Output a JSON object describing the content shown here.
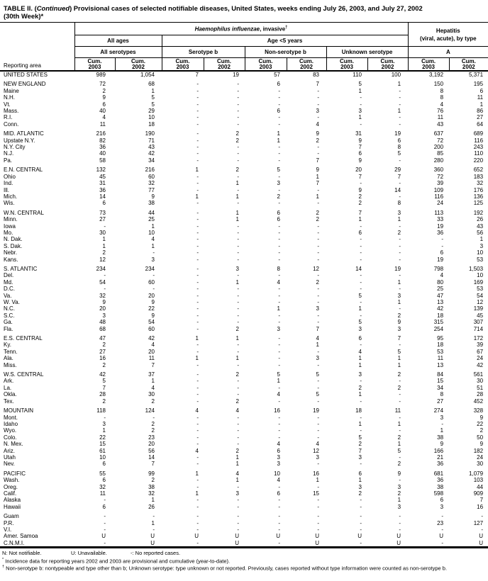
{
  "title": {
    "part1": "TABLE II. (",
    "continued": "Continued",
    "part2": ") Provisional cases of selected notifiable diseases, United States, weeks ending July 26, 2003, and July 27, 2002",
    "line2": "(30th Week)*"
  },
  "header": {
    "reporting_area": "Reporting area",
    "disease_italic": "Haemophilus influenzae",
    "disease_rest": ", invasive",
    "disease_dagger": "†",
    "hepatitis_line1": "Hepatitis",
    "hepatitis_line2": "(viral, acute), by type",
    "all_ages": "All ages",
    "age_under5": "Age <5 years",
    "all_serotypes": "All serotypes",
    "serotype_b": "Serotype b",
    "non_serotype_b": "Non-serotype b",
    "unknown_serotype": "Unknown serotype",
    "type_a": "A",
    "cum": "Cum.",
    "year_2003": "2003",
    "year_2002": "2002"
  },
  "table": {
    "rows": [
      {
        "label": "UNITED STATES",
        "gap": false,
        "values": [
          "989",
          "1,054",
          "7",
          "19",
          "57",
          "83",
          "110",
          "100",
          "3,192",
          "5,371"
        ]
      },
      {
        "label": "NEW ENGLAND",
        "gap": true,
        "values": [
          "72",
          "68",
          "-",
          "-",
          "6",
          "7",
          "5",
          "1",
          "150",
          "195"
        ]
      },
      {
        "label": "Maine",
        "gap": false,
        "values": [
          "2",
          "1",
          "-",
          "-",
          "-",
          "-",
          "1",
          "-",
          "8",
          "6"
        ]
      },
      {
        "label": "N.H.",
        "gap": false,
        "values": [
          "9",
          "5",
          "-",
          "-",
          "-",
          "-",
          "-",
          "-",
          "8",
          "11"
        ]
      },
      {
        "label": "Vt.",
        "gap": false,
        "values": [
          "6",
          "5",
          "-",
          "-",
          "-",
          "-",
          "-",
          "-",
          "4",
          "1"
        ]
      },
      {
        "label": "Mass.",
        "gap": false,
        "values": [
          "40",
          "29",
          "-",
          "-",
          "6",
          "3",
          "3",
          "1",
          "76",
          "86"
        ]
      },
      {
        "label": "R.I.",
        "gap": false,
        "values": [
          "4",
          "10",
          "-",
          "-",
          "-",
          "-",
          "1",
          "-",
          "11",
          "27"
        ]
      },
      {
        "label": "Conn.",
        "gap": false,
        "values": [
          "11",
          "18",
          "-",
          "-",
          "-",
          "4",
          "-",
          "-",
          "43",
          "64"
        ]
      },
      {
        "label": "MID. ATLANTIC",
        "gap": true,
        "values": [
          "216",
          "190",
          "-",
          "2",
          "1",
          "9",
          "31",
          "19",
          "637",
          "689"
        ]
      },
      {
        "label": "Upstate N.Y.",
        "gap": false,
        "values": [
          "82",
          "71",
          "-",
          "2",
          "1",
          "2",
          "9",
          "6",
          "72",
          "116"
        ]
      },
      {
        "label": "N.Y. City",
        "gap": false,
        "values": [
          "36",
          "43",
          "-",
          "-",
          "-",
          "-",
          "7",
          "8",
          "200",
          "243"
        ]
      },
      {
        "label": "N.J.",
        "gap": false,
        "values": [
          "40",
          "42",
          "-",
          "-",
          "-",
          "-",
          "6",
          "5",
          "85",
          "110"
        ]
      },
      {
        "label": "Pa.",
        "gap": false,
        "values": [
          "58",
          "34",
          "-",
          "-",
          "-",
          "7",
          "9",
          "-",
          "280",
          "220"
        ]
      },
      {
        "label": "E.N. CENTRAL",
        "gap": true,
        "values": [
          "132",
          "216",
          "1",
          "2",
          "5",
          "9",
          "20",
          "29",
          "360",
          "652"
        ]
      },
      {
        "label": "Ohio",
        "gap": false,
        "values": [
          "45",
          "60",
          "-",
          "-",
          "-",
          "1",
          "7",
          "7",
          "72",
          "183"
        ]
      },
      {
        "label": "Ind.",
        "gap": false,
        "values": [
          "31",
          "32",
          "-",
          "1",
          "3",
          "7",
          "-",
          "-",
          "39",
          "32"
        ]
      },
      {
        "label": "Ill.",
        "gap": false,
        "values": [
          "36",
          "77",
          "-",
          "-",
          "-",
          "-",
          "9",
          "14",
          "109",
          "176"
        ]
      },
      {
        "label": "Mich.",
        "gap": false,
        "values": [
          "14",
          "9",
          "1",
          "1",
          "2",
          "1",
          "2",
          "-",
          "116",
          "136"
        ]
      },
      {
        "label": "Wis.",
        "gap": false,
        "values": [
          "6",
          "38",
          "-",
          "-",
          "-",
          "-",
          "2",
          "8",
          "24",
          "125"
        ]
      },
      {
        "label": "W.N. CENTRAL",
        "gap": true,
        "values": [
          "73",
          "44",
          "-",
          "1",
          "6",
          "2",
          "7",
          "3",
          "113",
          "192"
        ]
      },
      {
        "label": "Minn.",
        "gap": false,
        "values": [
          "27",
          "25",
          "-",
          "1",
          "6",
          "2",
          "1",
          "1",
          "33",
          "26"
        ]
      },
      {
        "label": "Iowa",
        "gap": false,
        "values": [
          "-",
          "1",
          "-",
          "-",
          "-",
          "-",
          "-",
          "-",
          "19",
          "43"
        ]
      },
      {
        "label": "Mo.",
        "gap": false,
        "values": [
          "30",
          "10",
          "-",
          "-",
          "-",
          "-",
          "6",
          "2",
          "36",
          "56"
        ]
      },
      {
        "label": "N. Dak.",
        "gap": false,
        "values": [
          "1",
          "4",
          "-",
          "-",
          "-",
          "-",
          "-",
          "-",
          "-",
          "1"
        ]
      },
      {
        "label": "S. Dak.",
        "gap": false,
        "values": [
          "1",
          "1",
          "-",
          "-",
          "-",
          "-",
          "-",
          "-",
          "-",
          "3"
        ]
      },
      {
        "label": "Nebr.",
        "gap": false,
        "values": [
          "2",
          "-",
          "-",
          "-",
          "-",
          "-",
          "-",
          "-",
          "6",
          "10"
        ]
      },
      {
        "label": "Kans.",
        "gap": false,
        "values": [
          "12",
          "3",
          "-",
          "-",
          "-",
          "-",
          "-",
          "-",
          "19",
          "53"
        ]
      },
      {
        "label": "S. ATLANTIC",
        "gap": true,
        "values": [
          "234",
          "234",
          "-",
          "3",
          "8",
          "12",
          "14",
          "19",
          "798",
          "1,503"
        ]
      },
      {
        "label": "Del.",
        "gap": false,
        "values": [
          "-",
          "-",
          "-",
          "-",
          "-",
          "-",
          "-",
          "-",
          "4",
          "10"
        ]
      },
      {
        "label": "Md.",
        "gap": false,
        "values": [
          "54",
          "60",
          "-",
          "1",
          "4",
          "2",
          "-",
          "1",
          "80",
          "169"
        ]
      },
      {
        "label": "D.C.",
        "gap": false,
        "values": [
          "-",
          "-",
          "-",
          "-",
          "-",
          "-",
          "-",
          "-",
          "25",
          "53"
        ]
      },
      {
        "label": "Va.",
        "gap": false,
        "values": [
          "32",
          "20",
          "-",
          "-",
          "-",
          "-",
          "5",
          "3",
          "47",
          "54"
        ]
      },
      {
        "label": "W. Va.",
        "gap": false,
        "values": [
          "9",
          "9",
          "-",
          "-",
          "-",
          "-",
          "-",
          "1",
          "13",
          "12"
        ]
      },
      {
        "label": "N.C.",
        "gap": false,
        "values": [
          "20",
          "22",
          "-",
          "-",
          "1",
          "3",
          "1",
          "-",
          "42",
          "139"
        ]
      },
      {
        "label": "S.C.",
        "gap": false,
        "values": [
          "3",
          "9",
          "-",
          "-",
          "-",
          "-",
          "-",
          "2",
          "18",
          "45"
        ]
      },
      {
        "label": "Ga.",
        "gap": false,
        "values": [
          "48",
          "54",
          "-",
          "-",
          "-",
          "-",
          "5",
          "9",
          "315",
          "307"
        ]
      },
      {
        "label": "Fla.",
        "gap": false,
        "values": [
          "68",
          "60",
          "-",
          "2",
          "3",
          "7",
          "3",
          "3",
          "254",
          "714"
        ]
      },
      {
        "label": "E.S. CENTRAL",
        "gap": true,
        "values": [
          "47",
          "42",
          "1",
          "1",
          "-",
          "4",
          "6",
          "7",
          "95",
          "172"
        ]
      },
      {
        "label": "Ky.",
        "gap": false,
        "values": [
          "2",
          "4",
          "-",
          "-",
          "-",
          "1",
          "-",
          "-",
          "18",
          "39"
        ]
      },
      {
        "label": "Tenn.",
        "gap": false,
        "values": [
          "27",
          "20",
          "-",
          "-",
          "-",
          "-",
          "4",
          "5",
          "53",
          "67"
        ]
      },
      {
        "label": "Ala.",
        "gap": false,
        "values": [
          "16",
          "11",
          "1",
          "1",
          "-",
          "3",
          "1",
          "1",
          "11",
          "24"
        ]
      },
      {
        "label": "Miss.",
        "gap": false,
        "values": [
          "2",
          "7",
          "-",
          "-",
          "-",
          "-",
          "1",
          "1",
          "13",
          "42"
        ]
      },
      {
        "label": "W.S. CENTRAL",
        "gap": true,
        "values": [
          "42",
          "37",
          "-",
          "2",
          "5",
          "5",
          "3",
          "2",
          "84",
          "561"
        ]
      },
      {
        "label": "Ark.",
        "gap": false,
        "values": [
          "5",
          "1",
          "-",
          "-",
          "1",
          "-",
          "-",
          "-",
          "15",
          "30"
        ]
      },
      {
        "label": "La.",
        "gap": false,
        "values": [
          "7",
          "4",
          "-",
          "-",
          "-",
          "-",
          "2",
          "2",
          "34",
          "51"
        ]
      },
      {
        "label": "Okla.",
        "gap": false,
        "values": [
          "28",
          "30",
          "-",
          "-",
          "4",
          "5",
          "1",
          "-",
          "8",
          "28"
        ]
      },
      {
        "label": "Tex.",
        "gap": false,
        "values": [
          "2",
          "2",
          "-",
          "2",
          "-",
          "-",
          "-",
          "-",
          "27",
          "452"
        ]
      },
      {
        "label": "MOUNTAIN",
        "gap": true,
        "values": [
          "118",
          "124",
          "4",
          "4",
          "16",
          "19",
          "18",
          "11",
          "274",
          "328"
        ]
      },
      {
        "label": "Mont.",
        "gap": false,
        "values": [
          "-",
          "-",
          "-",
          "-",
          "-",
          "-",
          "-",
          "-",
          "3",
          "9"
        ]
      },
      {
        "label": "Idaho",
        "gap": false,
        "values": [
          "3",
          "2",
          "-",
          "-",
          "-",
          "-",
          "1",
          "1",
          "-",
          "22"
        ]
      },
      {
        "label": "Wyo.",
        "gap": false,
        "values": [
          "1",
          "2",
          "-",
          "-",
          "-",
          "-",
          "-",
          "-",
          "1",
          "2"
        ]
      },
      {
        "label": "Colo.",
        "gap": false,
        "values": [
          "22",
          "23",
          "-",
          "-",
          "-",
          "-",
          "5",
          "2",
          "38",
          "50"
        ]
      },
      {
        "label": "N. Mex.",
        "gap": false,
        "values": [
          "15",
          "20",
          "-",
          "-",
          "4",
          "4",
          "2",
          "1",
          "9",
          "9"
        ]
      },
      {
        "label": "Ariz.",
        "gap": false,
        "values": [
          "61",
          "56",
          "4",
          "2",
          "6",
          "12",
          "7",
          "5",
          "166",
          "182"
        ]
      },
      {
        "label": "Utah",
        "gap": false,
        "values": [
          "10",
          "14",
          "-",
          "1",
          "3",
          "3",
          "3",
          "-",
          "21",
          "24"
        ]
      },
      {
        "label": "Nev.",
        "gap": false,
        "values": [
          "6",
          "7",
          "-",
          "1",
          "3",
          "-",
          "-",
          "2",
          "36",
          "30"
        ]
      },
      {
        "label": "PACIFIC",
        "gap": true,
        "values": [
          "55",
          "99",
          "1",
          "4",
          "10",
          "16",
          "6",
          "9",
          "681",
          "1,079"
        ]
      },
      {
        "label": "Wash.",
        "gap": false,
        "values": [
          "6",
          "2",
          "-",
          "1",
          "4",
          "1",
          "1",
          "-",
          "36",
          "103"
        ]
      },
      {
        "label": "Oreg.",
        "gap": false,
        "values": [
          "32",
          "38",
          "-",
          "-",
          "-",
          "-",
          "3",
          "3",
          "38",
          "44"
        ]
      },
      {
        "label": "Calif.",
        "gap": false,
        "values": [
          "11",
          "32",
          "1",
          "3",
          "6",
          "15",
          "2",
          "2",
          "598",
          "909"
        ]
      },
      {
        "label": "Alaska",
        "gap": false,
        "values": [
          "-",
          "1",
          "-",
          "-",
          "-",
          "-",
          "-",
          "1",
          "6",
          "7"
        ]
      },
      {
        "label": "Hawaii",
        "gap": false,
        "values": [
          "6",
          "26",
          "-",
          "-",
          "-",
          "-",
          "-",
          "3",
          "3",
          "16"
        ]
      },
      {
        "label": "Guam",
        "gap": true,
        "values": [
          "-",
          "-",
          "-",
          "-",
          "-",
          "-",
          "-",
          "-",
          "-",
          "-"
        ]
      },
      {
        "label": "P.R.",
        "gap": false,
        "values": [
          "-",
          "1",
          "-",
          "-",
          "-",
          "-",
          "-",
          "-",
          "23",
          "127"
        ]
      },
      {
        "label": "V.I.",
        "gap": false,
        "values": [
          "-",
          "-",
          "-",
          "-",
          "-",
          "-",
          "-",
          "-",
          "-",
          "-"
        ]
      },
      {
        "label": "Amer. Samoa",
        "gap": false,
        "values": [
          "U",
          "U",
          "U",
          "U",
          "U",
          "U",
          "U",
          "U",
          "U",
          "U"
        ]
      },
      {
        "label": "C.N.M.I.",
        "gap": false,
        "values": [
          "-",
          "U",
          "-",
          "U",
          "-",
          "U",
          "-",
          "U",
          "-",
          "U"
        ]
      }
    ]
  },
  "footnotes": {
    "legend_n": "N: Not notifiable.",
    "legend_u": "U: Unavailable.",
    "legend_dash": "-: No reported cases.",
    "star_marker": "*",
    "star_text": "Incidence data for reporting years 2002 and 2003 are provisional and cumulative (year-to-date).",
    "dagger_marker": "†",
    "dagger_text": "Non-serotype b: nontypeable and type other than b; Unknown serotype: type unknown or not reported. Previously, cases reported without type information were counted as non-serotype b."
  }
}
